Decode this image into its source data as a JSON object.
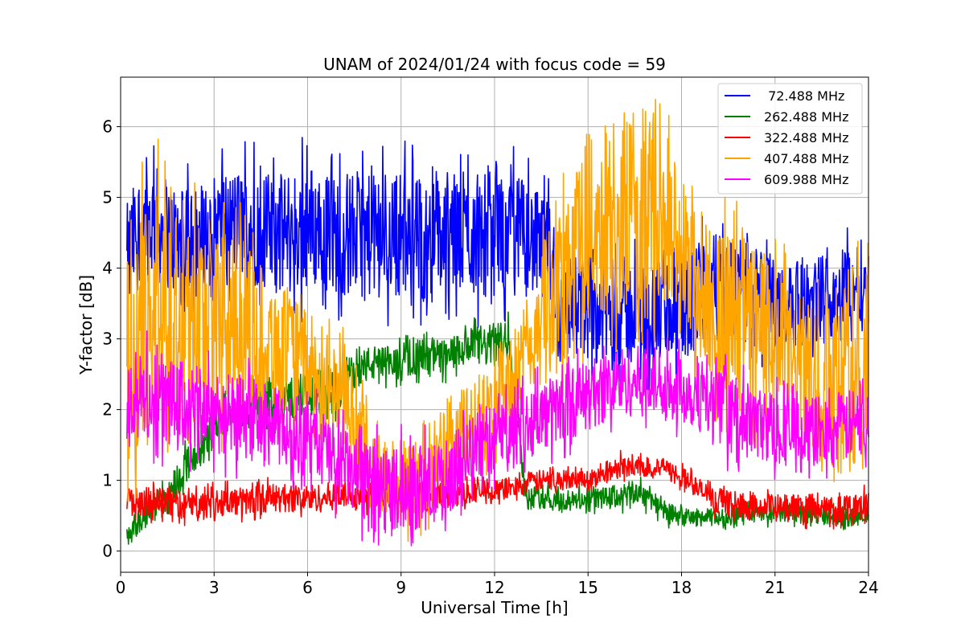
{
  "chart_data": {
    "type": "line",
    "title": "UNAM of 2024/01/24 with focus code = 59",
    "xlabel": "Universal Time [h]",
    "ylabel": "Y-factor [dB]",
    "xlim": [
      0,
      24
    ],
    "ylim": [
      -0.3,
      6.7
    ],
    "xticks": [
      0,
      3,
      6,
      9,
      12,
      15,
      18,
      21,
      24
    ],
    "xtick_labels": [
      "0",
      "3",
      "6",
      "9",
      "12",
      "15",
      "18",
      "21",
      "24"
    ],
    "yticks": [
      0,
      1,
      2,
      3,
      4,
      5,
      6
    ],
    "ytick_labels": [
      "0",
      "1",
      "2",
      "3",
      "4",
      "5",
      "6"
    ],
    "grid": true,
    "legend_position": "top-right",
    "series": [
      {
        "name": " 72.488 MHz",
        "color": "#0000ff",
        "x": [
          0.2,
          0.5,
          1,
          1.5,
          2,
          2.5,
          3,
          3.5,
          4,
          4.5,
          5,
          5.5,
          6,
          6.5,
          7,
          7.5,
          8,
          8.5,
          9,
          9.5,
          10,
          10.5,
          11,
          11.5,
          12,
          12.5,
          13,
          13.5,
          13.9,
          14,
          14.5,
          15,
          15.5,
          16,
          16.5,
          17,
          17.5,
          18,
          18.5,
          19,
          19.5,
          20,
          20.5,
          21,
          21.5,
          22,
          22.5,
          23,
          23.5,
          24
        ],
        "low": [
          3.0,
          3.8,
          3.8,
          3.7,
          3.5,
          3.5,
          3.8,
          3.9,
          3.8,
          3.7,
          3.7,
          3.6,
          3.7,
          3.7,
          3.6,
          3.6,
          3.6,
          3.6,
          3.6,
          3.5,
          3.5,
          3.6,
          3.6,
          3.6,
          3.6,
          3.6,
          3.6,
          3.5,
          3.4,
          2.6,
          2.8,
          2.7,
          2.6,
          2.6,
          2.6,
          2.6,
          2.6,
          2.6,
          2.9,
          3.0,
          2.9,
          2.9,
          2.8,
          2.9,
          2.9,
          2.9,
          3.0,
          3.0,
          3.2,
          3.3
        ],
        "high": [
          4.9,
          5.3,
          5.5,
          5.3,
          5.1,
          5.2,
          5.3,
          5.4,
          5.4,
          5.4,
          5.3,
          5.4,
          5.5,
          5.4,
          5.3,
          5.4,
          5.3,
          5.4,
          5.4,
          5.3,
          5.3,
          5.4,
          5.3,
          5.4,
          5.5,
          5.3,
          5.3,
          5.0,
          4.9,
          4.0,
          4.2,
          4.2,
          4.1,
          4.2,
          4.1,
          4.1,
          4.2,
          4.2,
          4.4,
          4.5,
          4.4,
          4.4,
          4.3,
          4.2,
          4.1,
          4.1,
          4.2,
          4.3,
          4.4,
          4.4
        ]
      },
      {
        "name": "262.488 MHz",
        "color": "#008000",
        "x": [
          0.2,
          0.5,
          1,
          1.5,
          2,
          2.5,
          3,
          3.5,
          4,
          4.5,
          5,
          5.5,
          6,
          6.5,
          7,
          7.5,
          8,
          8.5,
          9,
          9.5,
          10,
          10.5,
          11,
          11.5,
          12,
          12.5,
          13,
          13.5,
          14,
          14.5,
          15,
          15.5,
          16,
          16.5,
          17,
          17.5,
          18,
          18.5,
          19,
          19.5,
          20,
          20.5,
          21,
          21.5,
          22,
          22.5,
          23,
          23.5,
          24
        ],
        "low": [
          0.05,
          0.2,
          0.4,
          0.5,
          0.9,
          1.2,
          1.5,
          1.7,
          1.7,
          1.8,
          1.8,
          1.9,
          1.9,
          2.0,
          2.0,
          2.3,
          2.4,
          2.4,
          2.4,
          2.5,
          2.5,
          2.5,
          2.6,
          2.6,
          2.6,
          2.7,
          0.6,
          0.6,
          0.55,
          0.55,
          0.6,
          0.6,
          0.6,
          0.65,
          0.6,
          0.4,
          0.35,
          0.35,
          0.35,
          0.35,
          0.4,
          0.4,
          0.4,
          0.4,
          0.4,
          0.4,
          0.35,
          0.35,
          0.4
        ],
        "high": [
          0.3,
          0.5,
          0.8,
          1.0,
          1.4,
          1.7,
          2.0,
          2.2,
          2.3,
          2.4,
          2.4,
          2.5,
          2.5,
          2.6,
          2.7,
          2.8,
          2.9,
          2.9,
          2.9,
          3.0,
          3.0,
          3.0,
          3.1,
          3.2,
          3.2,
          3.3,
          0.9,
          0.9,
          0.85,
          0.85,
          0.9,
          0.9,
          0.95,
          1.0,
          0.95,
          0.7,
          0.6,
          0.6,
          0.6,
          0.6,
          0.65,
          0.65,
          0.65,
          0.65,
          0.65,
          0.65,
          0.6,
          0.6,
          0.65
        ]
      },
      {
        "name": "322.488 MHz",
        "color": "#ff0000",
        "x": [
          0.2,
          0.5,
          1,
          1.5,
          2,
          2.5,
          3,
          3.5,
          4,
          4.5,
          5,
          5.5,
          6,
          6.5,
          7,
          7.5,
          8,
          8.5,
          9,
          9.5,
          10,
          10.5,
          11,
          11.5,
          12,
          12.5,
          13,
          13.5,
          14,
          14.5,
          15,
          15.5,
          16,
          16.5,
          17,
          17.5,
          18,
          18.5,
          19,
          19.5,
          20,
          20.5,
          21,
          21.5,
          22,
          22.5,
          23,
          23.5,
          24
        ],
        "low": [
          0.5,
          0.5,
          0.5,
          0.5,
          0.45,
          0.45,
          0.5,
          0.5,
          0.5,
          0.55,
          0.55,
          0.55,
          0.55,
          0.55,
          0.6,
          0.6,
          0.6,
          0.6,
          0.6,
          0.6,
          0.6,
          0.6,
          0.65,
          0.7,
          0.7,
          0.75,
          0.8,
          0.85,
          0.85,
          0.9,
          0.9,
          0.95,
          1.05,
          1.05,
          1.05,
          1.0,
          0.9,
          0.75,
          0.55,
          0.5,
          0.45,
          0.45,
          0.45,
          0.45,
          0.4,
          0.4,
          0.4,
          0.45,
          0.45
        ],
        "high": [
          0.9,
          0.9,
          0.9,
          0.9,
          0.85,
          0.85,
          0.9,
          0.9,
          0.9,
          0.95,
          0.95,
          0.95,
          0.95,
          0.95,
          1.0,
          1.0,
          1.0,
          1.0,
          1.0,
          1.0,
          1.0,
          1.0,
          1.0,
          1.0,
          1.0,
          1.05,
          1.1,
          1.15,
          1.15,
          1.15,
          1.15,
          1.2,
          1.35,
          1.35,
          1.3,
          1.3,
          1.2,
          1.05,
          0.9,
          0.85,
          0.8,
          0.8,
          0.8,
          0.8,
          0.8,
          0.8,
          0.8,
          0.85,
          0.85
        ]
      },
      {
        "name": "407.488 MHz",
        "color": "#ffa500",
        "x": [
          0.2,
          0.5,
          1,
          1.5,
          2,
          2.5,
          3,
          3.5,
          4,
          4.5,
          5,
          5.5,
          6,
          6.5,
          7,
          7.5,
          8,
          8.5,
          9,
          9.5,
          10,
          10.5,
          11,
          11.5,
          12,
          12.5,
          13,
          13.5,
          14,
          14.5,
          15,
          15.5,
          16,
          16.5,
          17,
          17.5,
          18,
          18.5,
          19,
          19.5,
          20,
          20.5,
          21,
          21.5,
          22,
          22.5,
          23,
          23.5,
          24
        ],
        "low": [
          1.0,
          1.2,
          1.6,
          1.8,
          1.7,
          1.8,
          2.0,
          2.0,
          2.1,
          2.0,
          2.0,
          1.9,
          1.9,
          1.7,
          1.5,
          1.2,
          0.5,
          0.4,
          0.4,
          0.5,
          0.6,
          0.8,
          1.0,
          1.2,
          1.5,
          1.7,
          2.0,
          2.3,
          2.5,
          3.0,
          3.3,
          3.3,
          3.3,
          3.4,
          3.4,
          3.3,
          3.0,
          2.6,
          2.4,
          2.2,
          2.1,
          2.0,
          1.9,
          1.6,
          1.4,
          1.2,
          1.2,
          1.1,
          1.0
        ],
        "high": [
          4.2,
          4.5,
          5.0,
          5.0,
          4.9,
          4.8,
          4.6,
          4.5,
          4.3,
          4.1,
          3.8,
          3.6,
          3.4,
          3.1,
          2.9,
          2.6,
          1.8,
          1.6,
          1.6,
          1.8,
          1.9,
          2.1,
          2.3,
          2.5,
          2.8,
          3.1,
          3.5,
          4.2,
          5.1,
          5.5,
          5.8,
          6.0,
          6.2,
          6.3,
          6.3,
          6.1,
          5.4,
          4.8,
          4.6,
          4.5,
          4.5,
          4.3,
          4.1,
          3.7,
          3.5,
          3.5,
          3.6,
          3.7,
          3.8
        ]
      },
      {
        "name": "609.988 MHz",
        "color": "#ff00ff",
        "x": [
          0.2,
          0.5,
          1,
          1.5,
          2,
          2.5,
          3,
          3.5,
          4,
          4.5,
          5,
          5.5,
          6,
          6.5,
          7,
          7.5,
          8,
          8.5,
          9,
          9.5,
          10,
          10.5,
          11,
          11.5,
          12,
          12.5,
          13,
          13.5,
          14,
          14.5,
          15,
          15.5,
          16,
          16.5,
          17,
          17.5,
          18,
          18.5,
          19,
          19.5,
          20,
          20.5,
          21,
          21.5,
          22,
          22.5,
          23,
          23.5,
          24
        ],
        "low": [
          1.5,
          1.5,
          1.5,
          1.5,
          1.4,
          1.4,
          1.4,
          1.3,
          1.3,
          1.2,
          1.2,
          1.1,
          1.0,
          0.9,
          0.7,
          0.5,
          0.3,
          0.3,
          0.3,
          0.3,
          0.3,
          0.5,
          0.8,
          1.0,
          1.1,
          1.2,
          1.3,
          1.4,
          1.5,
          1.6,
          1.7,
          1.8,
          1.9,
          1.9,
          1.9,
          1.9,
          1.8,
          1.7,
          1.6,
          1.4,
          1.3,
          1.3,
          1.2,
          1.2,
          1.2,
          1.2,
          1.2,
          1.3,
          1.3
        ],
        "high": [
          2.7,
          2.8,
          2.8,
          2.7,
          2.7,
          2.6,
          2.6,
          2.5,
          2.5,
          2.4,
          2.3,
          2.2,
          2.1,
          2.0,
          1.8,
          1.6,
          1.5,
          1.5,
          1.5,
          1.5,
          1.5,
          1.6,
          1.8,
          2.0,
          2.1,
          2.2,
          2.3,
          2.4,
          2.5,
          2.6,
          2.7,
          2.8,
          2.9,
          2.9,
          2.9,
          2.9,
          2.8,
          2.7,
          2.6,
          2.5,
          2.4,
          2.3,
          2.3,
          2.2,
          2.2,
          2.2,
          2.2,
          2.3,
          2.3
        ]
      }
    ]
  }
}
